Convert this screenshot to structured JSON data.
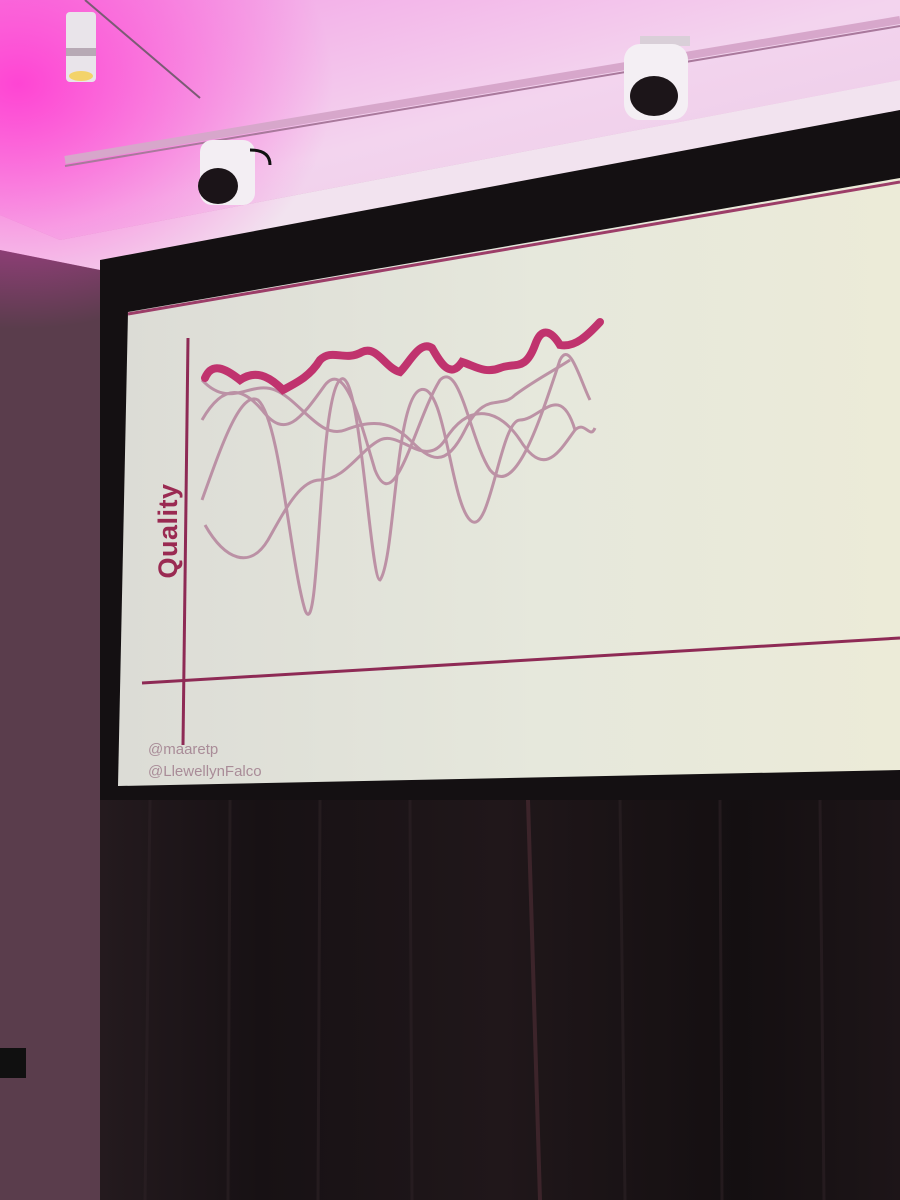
{
  "slide": {
    "y_axis_label": "Quality",
    "handles": [
      "@maaretp",
      "@LlewellynFalco"
    ]
  },
  "colors": {
    "accent_line": "#c0336e",
    "thin_lines": "#b889a0",
    "axes": "#8e2a55",
    "screen": "#e3e2d8",
    "ceiling_light": "#e85ad0"
  }
}
